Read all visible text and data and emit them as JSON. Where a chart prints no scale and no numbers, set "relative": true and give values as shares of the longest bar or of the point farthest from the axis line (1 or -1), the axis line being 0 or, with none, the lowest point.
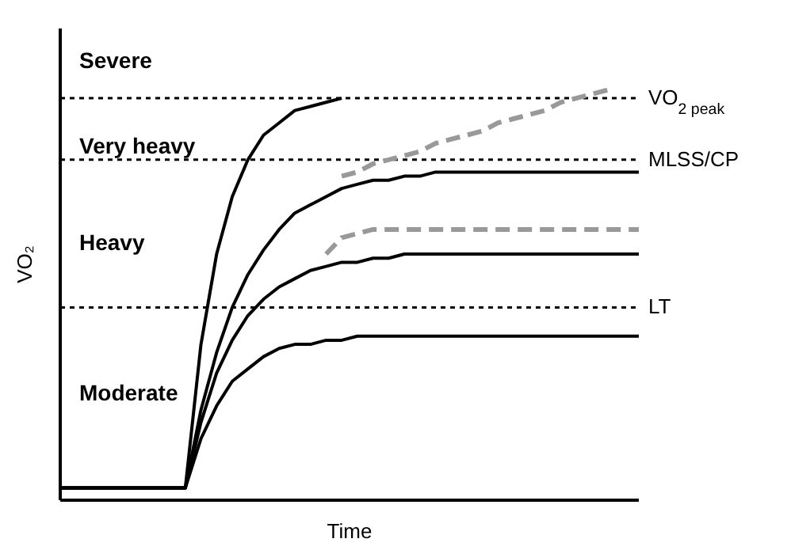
{
  "chart_data": {
    "type": "line",
    "relative": true,
    "xlabel": "Time",
    "ylabel": "VO₂",
    "marker": "none",
    "categories": [
      null,
      null,
      null,
      null,
      null,
      null,
      null,
      null,
      null,
      null,
      null,
      null,
      null,
      null,
      null,
      null,
      null,
      null,
      null,
      null,
      null,
      null,
      null,
      null,
      null,
      null,
      null,
      null,
      null,
      null,
      null,
      null,
      null,
      null,
      null,
      null,
      null,
      null
    ],
    "series": [
      {
        "color": "#000000",
        "line_style": "solid",
        "values": [
          0.03,
          0.03,
          0.03,
          0.03,
          0.03,
          0.03,
          0.03,
          0.03,
          0.03,
          0.15,
          0.23,
          0.29,
          0.32,
          0.35,
          0.37,
          0.38,
          0.38,
          0.39,
          0.39,
          0.4,
          0.4,
          0.4,
          0.4,
          0.4,
          0.4,
          0.4,
          0.4,
          0.4,
          0.4,
          0.4,
          0.4,
          0.4,
          0.4,
          0.4,
          0.4,
          0.4,
          0.4,
          0.4
        ]
      },
      {
        "color": "#000000",
        "line_style": "solid",
        "values": [
          0.03,
          0.03,
          0.03,
          0.03,
          0.03,
          0.03,
          0.03,
          0.03,
          0.03,
          0.19,
          0.31,
          0.39,
          0.45,
          0.49,
          0.52,
          0.54,
          0.56,
          0.57,
          0.58,
          0.58,
          0.59,
          0.59,
          0.6,
          0.6,
          0.6,
          0.6,
          0.6,
          0.6,
          0.6,
          0.6,
          0.6,
          0.6,
          0.6,
          0.6,
          0.6,
          0.6,
          0.6,
          0.6
        ]
      },
      {
        "color": "#999999",
        "line_style": "dashed",
        "values": [
          null,
          null,
          null,
          null,
          null,
          null,
          null,
          null,
          null,
          null,
          null,
          null,
          null,
          null,
          null,
          null,
          null,
          0.6,
          0.64,
          0.65,
          0.66,
          0.66,
          0.66,
          0.66,
          0.66,
          0.66,
          0.66,
          0.66,
          0.66,
          0.66,
          0.66,
          0.66,
          0.66,
          0.66,
          0.66,
          0.66,
          0.66,
          0.66
        ]
      },
      {
        "color": "#000000",
        "line_style": "solid",
        "values": [
          0.03,
          0.03,
          0.03,
          0.03,
          0.03,
          0.03,
          0.03,
          0.03,
          0.03,
          0.22,
          0.36,
          0.47,
          0.55,
          0.61,
          0.66,
          0.7,
          0.72,
          0.74,
          0.76,
          0.77,
          0.78,
          0.78,
          0.79,
          0.79,
          0.8,
          0.8,
          0.8,
          0.8,
          0.8,
          0.8,
          0.8,
          0.8,
          0.8,
          0.8,
          0.8,
          0.8,
          0.8,
          0.8
        ]
      },
      {
        "color": "#999999",
        "line_style": "dashed",
        "values": [
          null,
          null,
          null,
          null,
          null,
          null,
          null,
          null,
          null,
          null,
          null,
          null,
          null,
          null,
          null,
          null,
          null,
          null,
          0.79,
          0.8,
          0.82,
          0.83,
          0.84,
          0.85,
          0.87,
          0.88,
          0.89,
          0.9,
          0.92,
          0.93,
          0.94,
          0.95,
          0.97,
          0.98,
          0.99,
          1.0,
          null,
          null
        ]
      },
      {
        "color": "#000000",
        "line_style": "solid",
        "values": [
          0.03,
          0.03,
          0.03,
          0.03,
          0.03,
          0.03,
          0.03,
          0.03,
          0.03,
          0.38,
          0.6,
          0.74,
          0.83,
          0.89,
          0.92,
          0.95,
          0.96,
          0.97,
          0.98,
          null,
          null,
          null,
          null,
          null,
          null,
          null,
          null,
          null,
          null,
          null,
          null,
          null,
          null,
          null,
          null,
          null,
          null,
          null
        ]
      }
    ],
    "ref_lines": [
      {
        "axis": "y",
        "value": 0.98,
        "label": "VO$_{2 peak}$",
        "line_style": "dotted",
        "color": "#000000"
      },
      {
        "axis": "y",
        "value": 0.83,
        "label": "MLSS/CP",
        "line_style": "dotted",
        "color": "#000000"
      },
      {
        "axis": "y",
        "value": 0.47,
        "label": "LT",
        "line_style": "dotted",
        "color": "#000000"
      }
    ],
    "annotations": [
      "Severe",
      "Very heavy",
      "Heavy",
      "Moderate"
    ]
  }
}
